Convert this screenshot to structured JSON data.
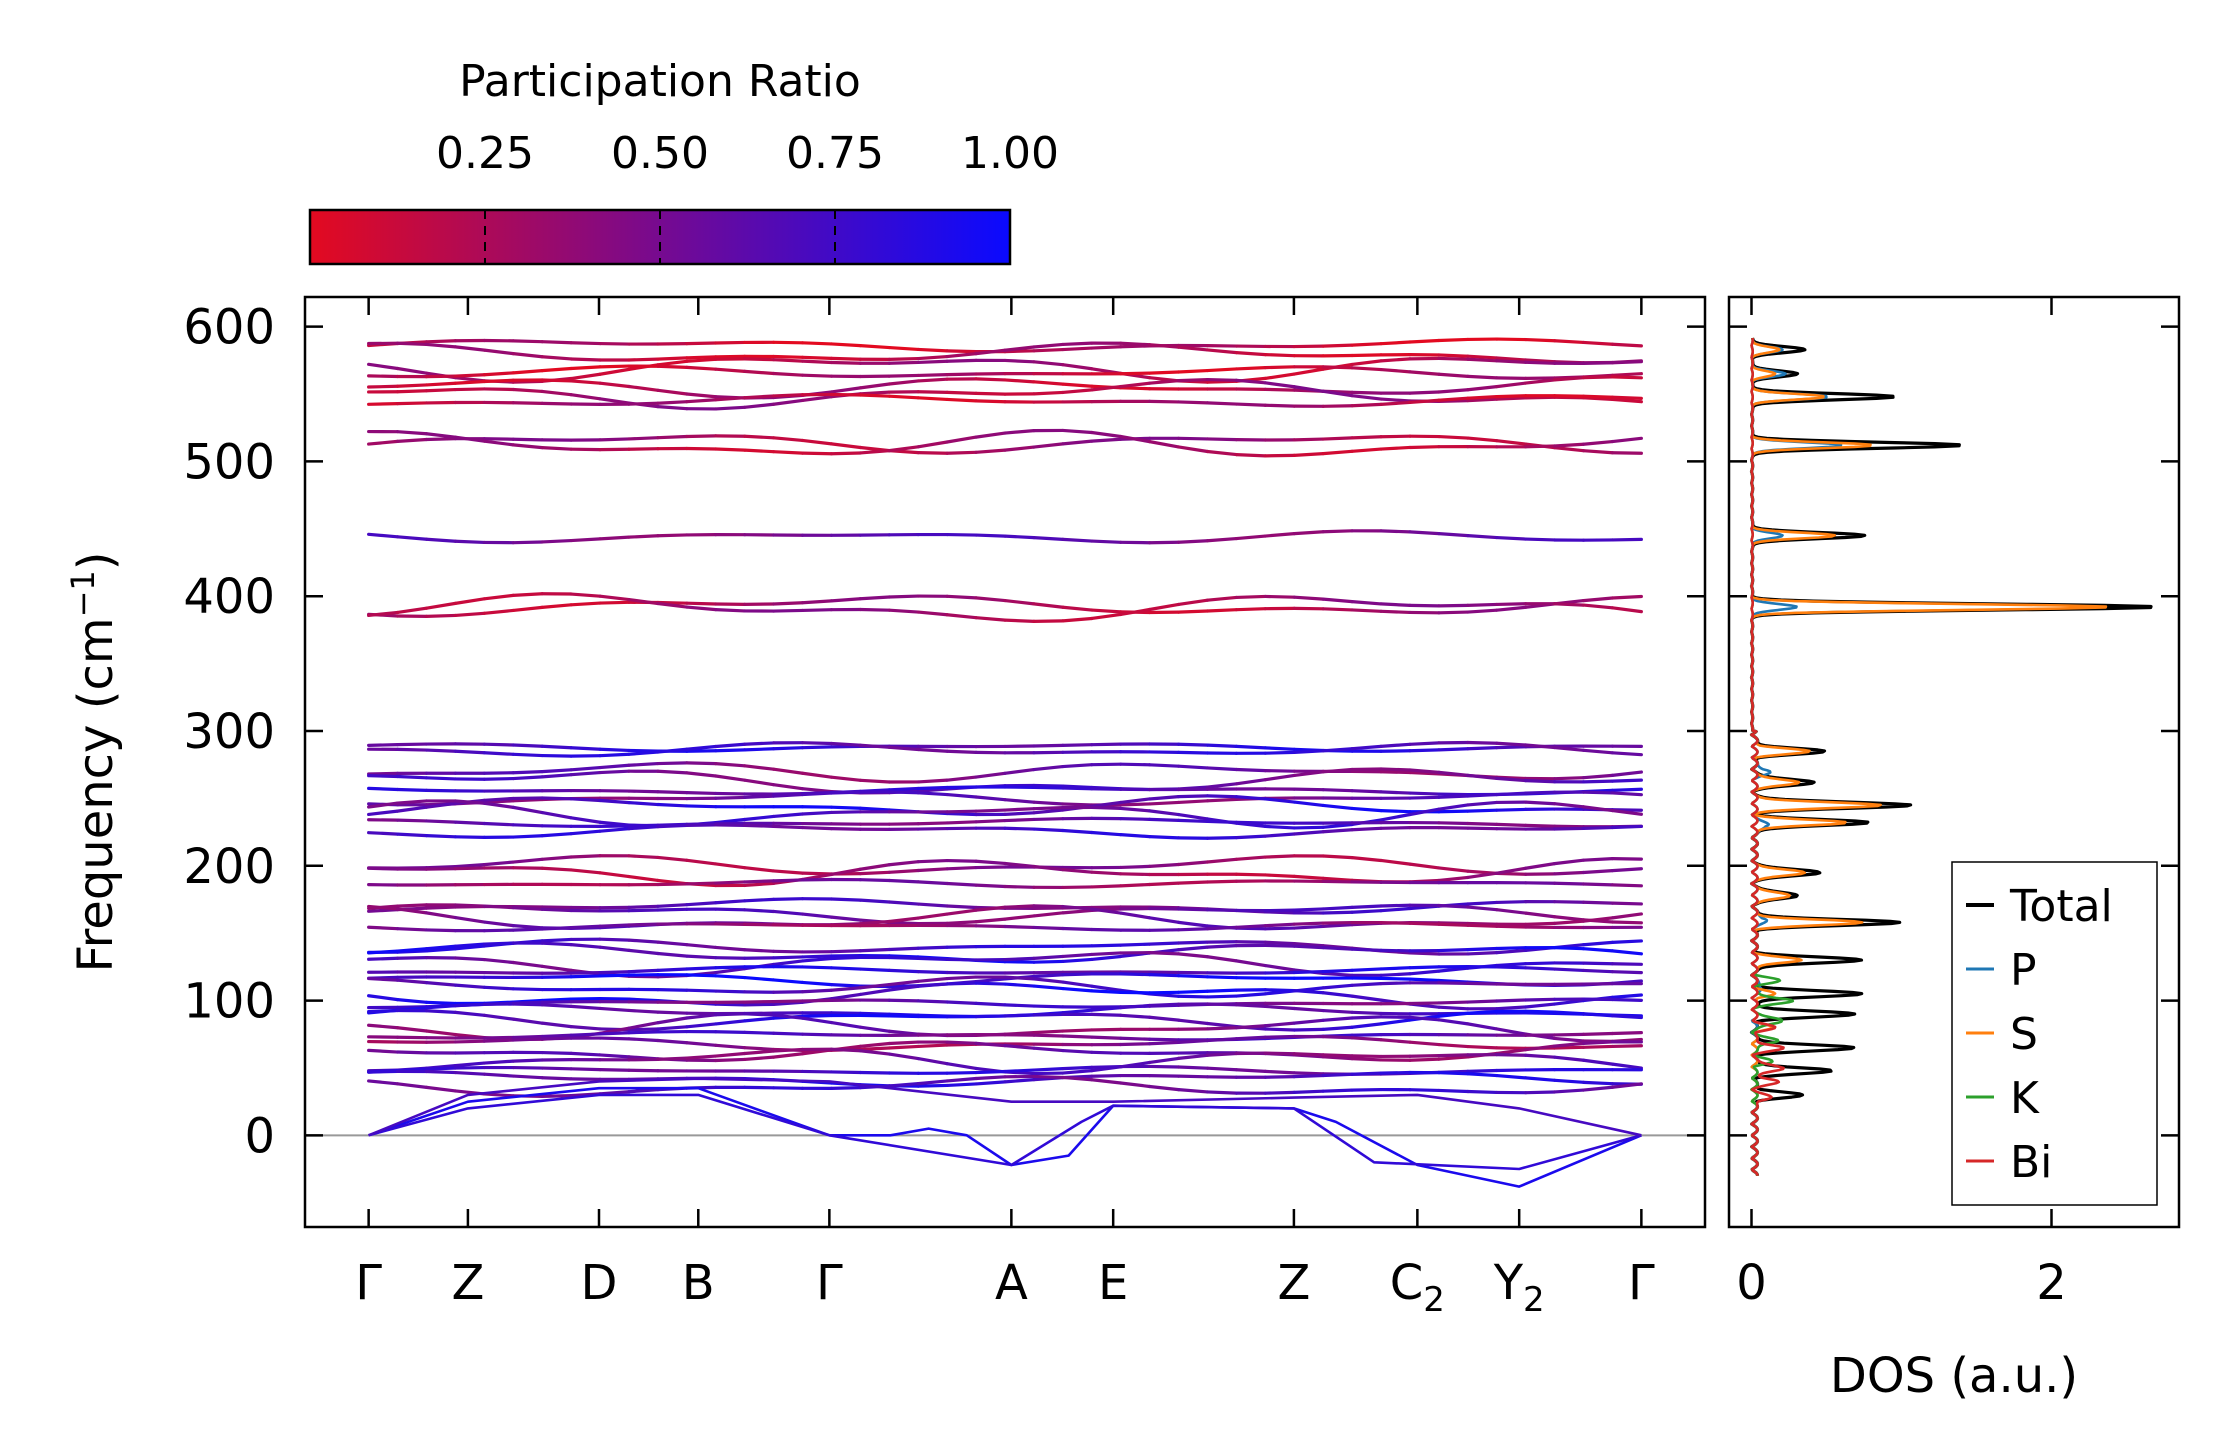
{
  "chart_data": [
    {
      "type": "line",
      "name": "phonon-band-structure",
      "ylabel": "Frequency (cm",
      "ylabel_sup": "−1",
      "ylabel_end": ")",
      "ylim": [
        -68,
        622
      ],
      "yticks": [
        0,
        100,
        200,
        300,
        400,
        500,
        600
      ],
      "ytick_labels": [
        "0",
        "100",
        "200",
        "300",
        "400",
        "500",
        "600"
      ],
      "xlim": [
        -0.5,
        10.5
      ],
      "xticks": [
        0,
        0.78,
        1.81,
        2.59,
        3.62,
        5.05,
        5.85,
        7.27,
        8.24,
        9.04,
        10.0
      ],
      "kpath": [
        {
          "main": "Γ",
          "sub": ""
        },
        {
          "main": "Z",
          "sub": ""
        },
        {
          "main": "D",
          "sub": ""
        },
        {
          "main": "B",
          "sub": ""
        },
        {
          "main": "Γ",
          "sub": ""
        },
        {
          "main": "A",
          "sub": ""
        },
        {
          "main": "E",
          "sub": ""
        },
        {
          "main": "Z",
          "sub": ""
        },
        {
          "main": "C",
          "sub": "2"
        },
        {
          "main": "Y",
          "sub": "2"
        },
        {
          "main": "Γ",
          "sub": ""
        }
      ],
      "zero_line": 0,
      "band_levels_cm1": [
        586,
        580,
        570,
        566,
        555,
        550,
        545,
        514,
        512,
        444,
        393,
        391,
        288,
        286,
        270,
        262,
        256,
        250,
        244,
        238,
        232,
        226,
        200,
        195,
        187,
        170,
        165,
        160,
        155,
        140,
        135,
        128,
        122,
        116,
        110,
        104,
        98,
        92,
        86,
        80,
        74,
        68,
        62,
        56,
        48,
        42,
        36
      ],
      "band_ratio_seeds": [
        0.15,
        0.2,
        0.25,
        0.18,
        0.22,
        0.3,
        0.2,
        0.3,
        0.25,
        0.55,
        0.25,
        0.3,
        0.75,
        0.7,
        0.5,
        0.6,
        0.7,
        0.55,
        0.8,
        0.65,
        0.6,
        0.7,
        0.35,
        0.3,
        0.4,
        0.6,
        0.55,
        0.5,
        0.45,
        0.7,
        0.8,
        0.65,
        0.75,
        0.9,
        0.7,
        0.85,
        0.6,
        0.75,
        0.8,
        0.5,
        0.6,
        0.4,
        0.5,
        0.55,
        0.7,
        0.75,
        0.65
      ],
      "acoustic_bands": [
        [
          [
            0,
            0
          ],
          [
            0.78,
            25
          ],
          [
            1.81,
            35
          ],
          [
            2.59,
            35
          ],
          [
            3.62,
            0
          ],
          [
            4.1,
            0
          ],
          [
            4.4,
            5
          ],
          [
            4.7,
            0
          ],
          [
            5.05,
            -22
          ],
          [
            5.5,
            -15
          ],
          [
            5.85,
            22
          ],
          [
            7.27,
            20
          ],
          [
            7.6,
            10
          ],
          [
            8.24,
            -22
          ],
          [
            9.04,
            -38
          ],
          [
            10.0,
            0
          ]
        ],
        [
          [
            0,
            0
          ],
          [
            0.78,
            20
          ],
          [
            1.81,
            30
          ],
          [
            2.59,
            30
          ],
          [
            3.62,
            0
          ],
          [
            5.05,
            -22
          ],
          [
            5.6,
            10
          ],
          [
            5.85,
            22
          ],
          [
            7.27,
            20
          ],
          [
            7.9,
            -20
          ],
          [
            9.04,
            -25
          ],
          [
            10.0,
            0
          ]
        ],
        [
          [
            0,
            0
          ],
          [
            0.78,
            30
          ],
          [
            1.81,
            40
          ],
          [
            2.59,
            42
          ],
          [
            3.62,
            40
          ],
          [
            5.05,
            25
          ],
          [
            5.85,
            25
          ],
          [
            7.27,
            28
          ],
          [
            8.24,
            30
          ],
          [
            9.04,
            20
          ],
          [
            10.0,
            0
          ]
        ]
      ],
      "colorbar": {
        "title": "Participation Ratio",
        "range": [
          0.0,
          1.0
        ],
        "ticks": [
          0.25,
          0.5,
          0.75,
          1.0
        ],
        "tick_labels": [
          "0.25",
          "0.50",
          "0.75",
          "1.00"
        ],
        "color_low": "#e30a20",
        "color_high": "#0a0aff"
      }
    },
    {
      "type": "line",
      "name": "phonon-dos",
      "xlabel": "DOS (a.u.)",
      "xlim": [
        -0.15,
        2.85
      ],
      "xticks": [
        0,
        2
      ],
      "xtick_labels": [
        "0",
        "2"
      ],
      "ylim": [
        -68,
        622
      ],
      "legend_position": "lower-right",
      "series": [
        {
          "name": "Total",
          "color": "#000000",
          "peaks": [
            [
              583,
              0.35
            ],
            [
              565,
              0.3
            ],
            [
              548,
              0.95
            ],
            [
              512,
              1.4
            ],
            [
              445,
              0.75
            ],
            [
              392,
              2.7
            ],
            [
              285,
              0.45
            ],
            [
              262,
              0.4
            ],
            [
              245,
              1.05
            ],
            [
              232,
              0.75
            ],
            [
              195,
              0.45
            ],
            [
              178,
              0.3
            ],
            [
              158,
              0.95
            ],
            [
              130,
              0.7
            ],
            [
              105,
              0.7
            ],
            [
              90,
              0.65
            ],
            [
              65,
              0.65
            ],
            [
              48,
              0.5
            ],
            [
              30,
              0.3
            ]
          ]
        },
        {
          "name": "P",
          "color": "#1f77b4",
          "peaks": [
            [
              583,
              0.2
            ],
            [
              565,
              0.22
            ],
            [
              548,
              0.5
            ],
            [
              512,
              0.6
            ],
            [
              445,
              0.2
            ],
            [
              392,
              0.3
            ],
            [
              270,
              0.1
            ],
            [
              230,
              0.1
            ],
            [
              160,
              0.08
            ],
            [
              110,
              0.05
            ]
          ]
        },
        {
          "name": "S",
          "color": "#ff7f0e",
          "peaks": [
            [
              583,
              0.18
            ],
            [
              565,
              0.15
            ],
            [
              548,
              0.48
            ],
            [
              512,
              0.8
            ],
            [
              445,
              0.55
            ],
            [
              392,
              2.4
            ],
            [
              285,
              0.35
            ],
            [
              262,
              0.3
            ],
            [
              245,
              0.85
            ],
            [
              232,
              0.6
            ],
            [
              195,
              0.35
            ],
            [
              178,
              0.25
            ],
            [
              158,
              0.7
            ],
            [
              130,
              0.3
            ],
            [
              105,
              0.12
            ],
            [
              80,
              0.1
            ]
          ]
        },
        {
          "name": "K",
          "color": "#2ca02c",
          "peaks": [
            [
              115,
              0.15
            ],
            [
              100,
              0.25
            ],
            [
              85,
              0.2
            ],
            [
              70,
              0.15
            ],
            [
              55,
              0.1
            ]
          ]
        },
        {
          "name": "Bi",
          "color": "#d62728",
          "peaks": [
            [
              80,
              0.12
            ],
            [
              65,
              0.18
            ],
            [
              50,
              0.2
            ],
            [
              40,
              0.15
            ],
            [
              28,
              0.1
            ]
          ]
        }
      ]
    }
  ]
}
